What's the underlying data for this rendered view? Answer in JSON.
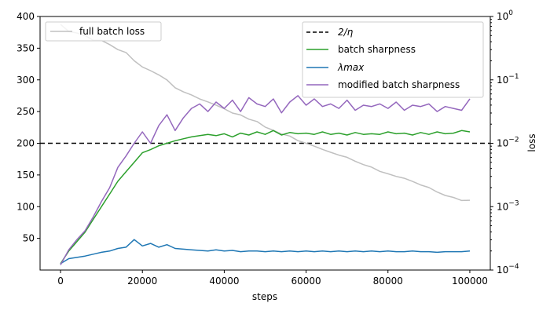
{
  "chart_data": {
    "type": "line",
    "xlabel": "steps",
    "ylabel_right": "loss",
    "xlim": [
      -5000,
      105000
    ],
    "ylim_left": [
      0,
      400
    ],
    "ylim_right_log": [
      0.0001,
      1
    ],
    "x_ticks": [
      0,
      20000,
      40000,
      60000,
      80000,
      100000
    ],
    "x_tick_labels": [
      "0",
      "20000",
      "40000",
      "60000",
      "80000",
      "100000"
    ],
    "y_left_ticks": [
      50,
      100,
      150,
      200,
      250,
      300,
      350,
      400
    ],
    "y_left_tick_labels": [
      "50",
      "100",
      "150",
      "200",
      "250",
      "300",
      "350",
      "400"
    ],
    "y_right_ticks": [
      0.0001,
      0.001,
      0.01,
      0.1,
      1
    ],
    "y_right_tick_base": "10",
    "y_right_tick_exponents": [
      "−4",
      "−3",
      "−2",
      "−1",
      "0"
    ],
    "legend_left": {
      "entries": [
        "full batch loss"
      ],
      "placement": "top-left"
    },
    "legend_right": {
      "entries": [
        "2/η",
        "batch sharpness",
        "λmax",
        "modified batch sharpness"
      ],
      "placement": "top-right"
    },
    "reference_line": {
      "name": "2/η",
      "y": 200,
      "color": "#000000",
      "style": "dashed"
    },
    "series": [
      {
        "name": "full batch loss",
        "axis": "right",
        "color": "#c0c0c0",
        "x": [
          0,
          2000,
          4000,
          6000,
          8000,
          10000,
          12000,
          14000,
          16000,
          18000,
          20000,
          22000,
          24000,
          26000,
          28000,
          30000,
          32000,
          34000,
          36000,
          38000,
          40000,
          42000,
          44000,
          46000,
          48000,
          50000,
          52000,
          54000,
          56000,
          58000,
          60000,
          62000,
          64000,
          66000,
          68000,
          70000,
          72000,
          74000,
          76000,
          78000,
          80000,
          82000,
          84000,
          86000,
          88000,
          90000,
          92000,
          94000,
          96000,
          98000,
          100000
        ],
        "y": [
          0.75,
          0.58,
          0.55,
          0.5,
          0.42,
          0.42,
          0.36,
          0.3,
          0.27,
          0.2,
          0.16,
          0.14,
          0.12,
          0.1,
          0.075,
          0.065,
          0.058,
          0.05,
          0.045,
          0.04,
          0.035,
          0.03,
          0.028,
          0.024,
          0.022,
          0.018,
          0.016,
          0.014,
          0.013,
          0.011,
          0.01,
          0.009,
          0.008,
          0.0072,
          0.0065,
          0.006,
          0.0052,
          0.0046,
          0.0042,
          0.0036,
          0.0033,
          0.003,
          0.0028,
          0.0025,
          0.0022,
          0.002,
          0.0017,
          0.0015,
          0.0014,
          0.00125,
          0.00126
        ]
      },
      {
        "name": "batch sharpness",
        "axis": "left",
        "color": "#2ca02c",
        "x": [
          0,
          2000,
          4000,
          6000,
          8000,
          10000,
          12000,
          14000,
          16000,
          18000,
          20000,
          22000,
          24000,
          26000,
          28000,
          30000,
          32000,
          34000,
          36000,
          38000,
          40000,
          42000,
          44000,
          46000,
          48000,
          50000,
          52000,
          54000,
          56000,
          58000,
          60000,
          62000,
          64000,
          66000,
          68000,
          70000,
          72000,
          74000,
          76000,
          78000,
          80000,
          82000,
          84000,
          86000,
          88000,
          90000,
          92000,
          94000,
          96000,
          98000,
          100000
        ],
        "y": [
          10,
          30,
          45,
          60,
          80,
          100,
          120,
          140,
          155,
          170,
          185,
          190,
          196,
          200,
          204,
          207,
          210,
          212,
          214,
          212,
          215,
          210,
          216,
          213,
          218,
          214,
          220,
          213,
          217,
          215,
          216,
          214,
          218,
          214,
          216,
          213,
          217,
          214,
          215,
          214,
          218,
          215,
          216,
          213,
          217,
          214,
          218,
          215,
          216,
          220,
          218
        ]
      },
      {
        "name": "λmax",
        "axis": "left",
        "color": "#1f77b4",
        "x": [
          0,
          2000,
          4000,
          6000,
          8000,
          10000,
          12000,
          14000,
          16000,
          18000,
          20000,
          22000,
          24000,
          26000,
          28000,
          30000,
          32000,
          34000,
          36000,
          38000,
          40000,
          42000,
          44000,
          46000,
          48000,
          50000,
          52000,
          54000,
          56000,
          58000,
          60000,
          62000,
          64000,
          66000,
          68000,
          70000,
          72000,
          74000,
          76000,
          78000,
          80000,
          82000,
          84000,
          86000,
          88000,
          90000,
          92000,
          94000,
          96000,
          98000,
          100000
        ],
        "y": [
          10,
          18,
          20,
          22,
          25,
          28,
          30,
          34,
          36,
          48,
          38,
          42,
          36,
          40,
          34,
          33,
          32,
          31,
          30,
          32,
          30,
          31,
          29,
          30,
          30,
          29,
          30,
          29,
          30,
          29,
          30,
          29,
          30,
          29,
          30,
          29,
          30,
          29,
          30,
          29,
          30,
          29,
          29,
          30,
          29,
          29,
          28,
          29,
          29,
          29,
          30
        ]
      },
      {
        "name": "modified batch sharpness",
        "axis": "left",
        "color": "#9467bd",
        "x": [
          0,
          2000,
          4000,
          6000,
          8000,
          10000,
          12000,
          14000,
          16000,
          18000,
          20000,
          22000,
          24000,
          26000,
          28000,
          30000,
          32000,
          34000,
          36000,
          38000,
          40000,
          42000,
          44000,
          46000,
          48000,
          50000,
          52000,
          54000,
          56000,
          58000,
          60000,
          62000,
          64000,
          66000,
          68000,
          70000,
          72000,
          74000,
          76000,
          78000,
          80000,
          82000,
          84000,
          86000,
          88000,
          90000,
          92000,
          94000,
          96000,
          98000,
          100000
        ],
        "y": [
          8,
          32,
          48,
          62,
          84,
          108,
          130,
          162,
          180,
          200,
          218,
          200,
          228,
          245,
          220,
          240,
          255,
          262,
          250,
          265,
          255,
          268,
          250,
          272,
          262,
          258,
          270,
          248,
          265,
          275,
          260,
          270,
          258,
          262,
          255,
          268,
          252,
          260,
          258,
          262,
          255,
          265,
          252,
          260,
          258,
          262,
          250,
          258,
          255,
          252,
          270
        ]
      }
    ]
  }
}
